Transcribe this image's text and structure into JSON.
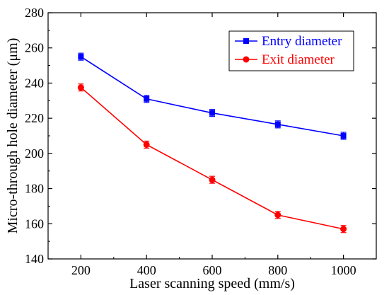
{
  "chart_data": {
    "type": "line",
    "title": "",
    "xlabel": "Laser scanning speed (mm/s)",
    "ylabel": "Micro-through hole diameter (μm)",
    "xlim": [
      100,
      1100
    ],
    "ylim": [
      140,
      280
    ],
    "x_ticks": [
      200,
      400,
      600,
      800,
      1000
    ],
    "y_ticks": [
      140,
      160,
      180,
      200,
      220,
      240,
      260,
      280
    ],
    "x": [
      200,
      400,
      600,
      800,
      1000
    ],
    "legend_position": "top-right",
    "grid": false,
    "series": [
      {
        "name": "Entry diameter",
        "color": "#0000ff",
        "marker": "square",
        "values": [
          255,
          231,
          223,
          216.5,
          210
        ],
        "error": [
          2,
          2,
          2,
          2,
          2
        ]
      },
      {
        "name": "Exit diameter",
        "color": "#ff0000",
        "marker": "circle",
        "values": [
          237.5,
          205,
          185,
          165,
          157
        ],
        "error": [
          2,
          2,
          2,
          2,
          2
        ]
      }
    ]
  }
}
